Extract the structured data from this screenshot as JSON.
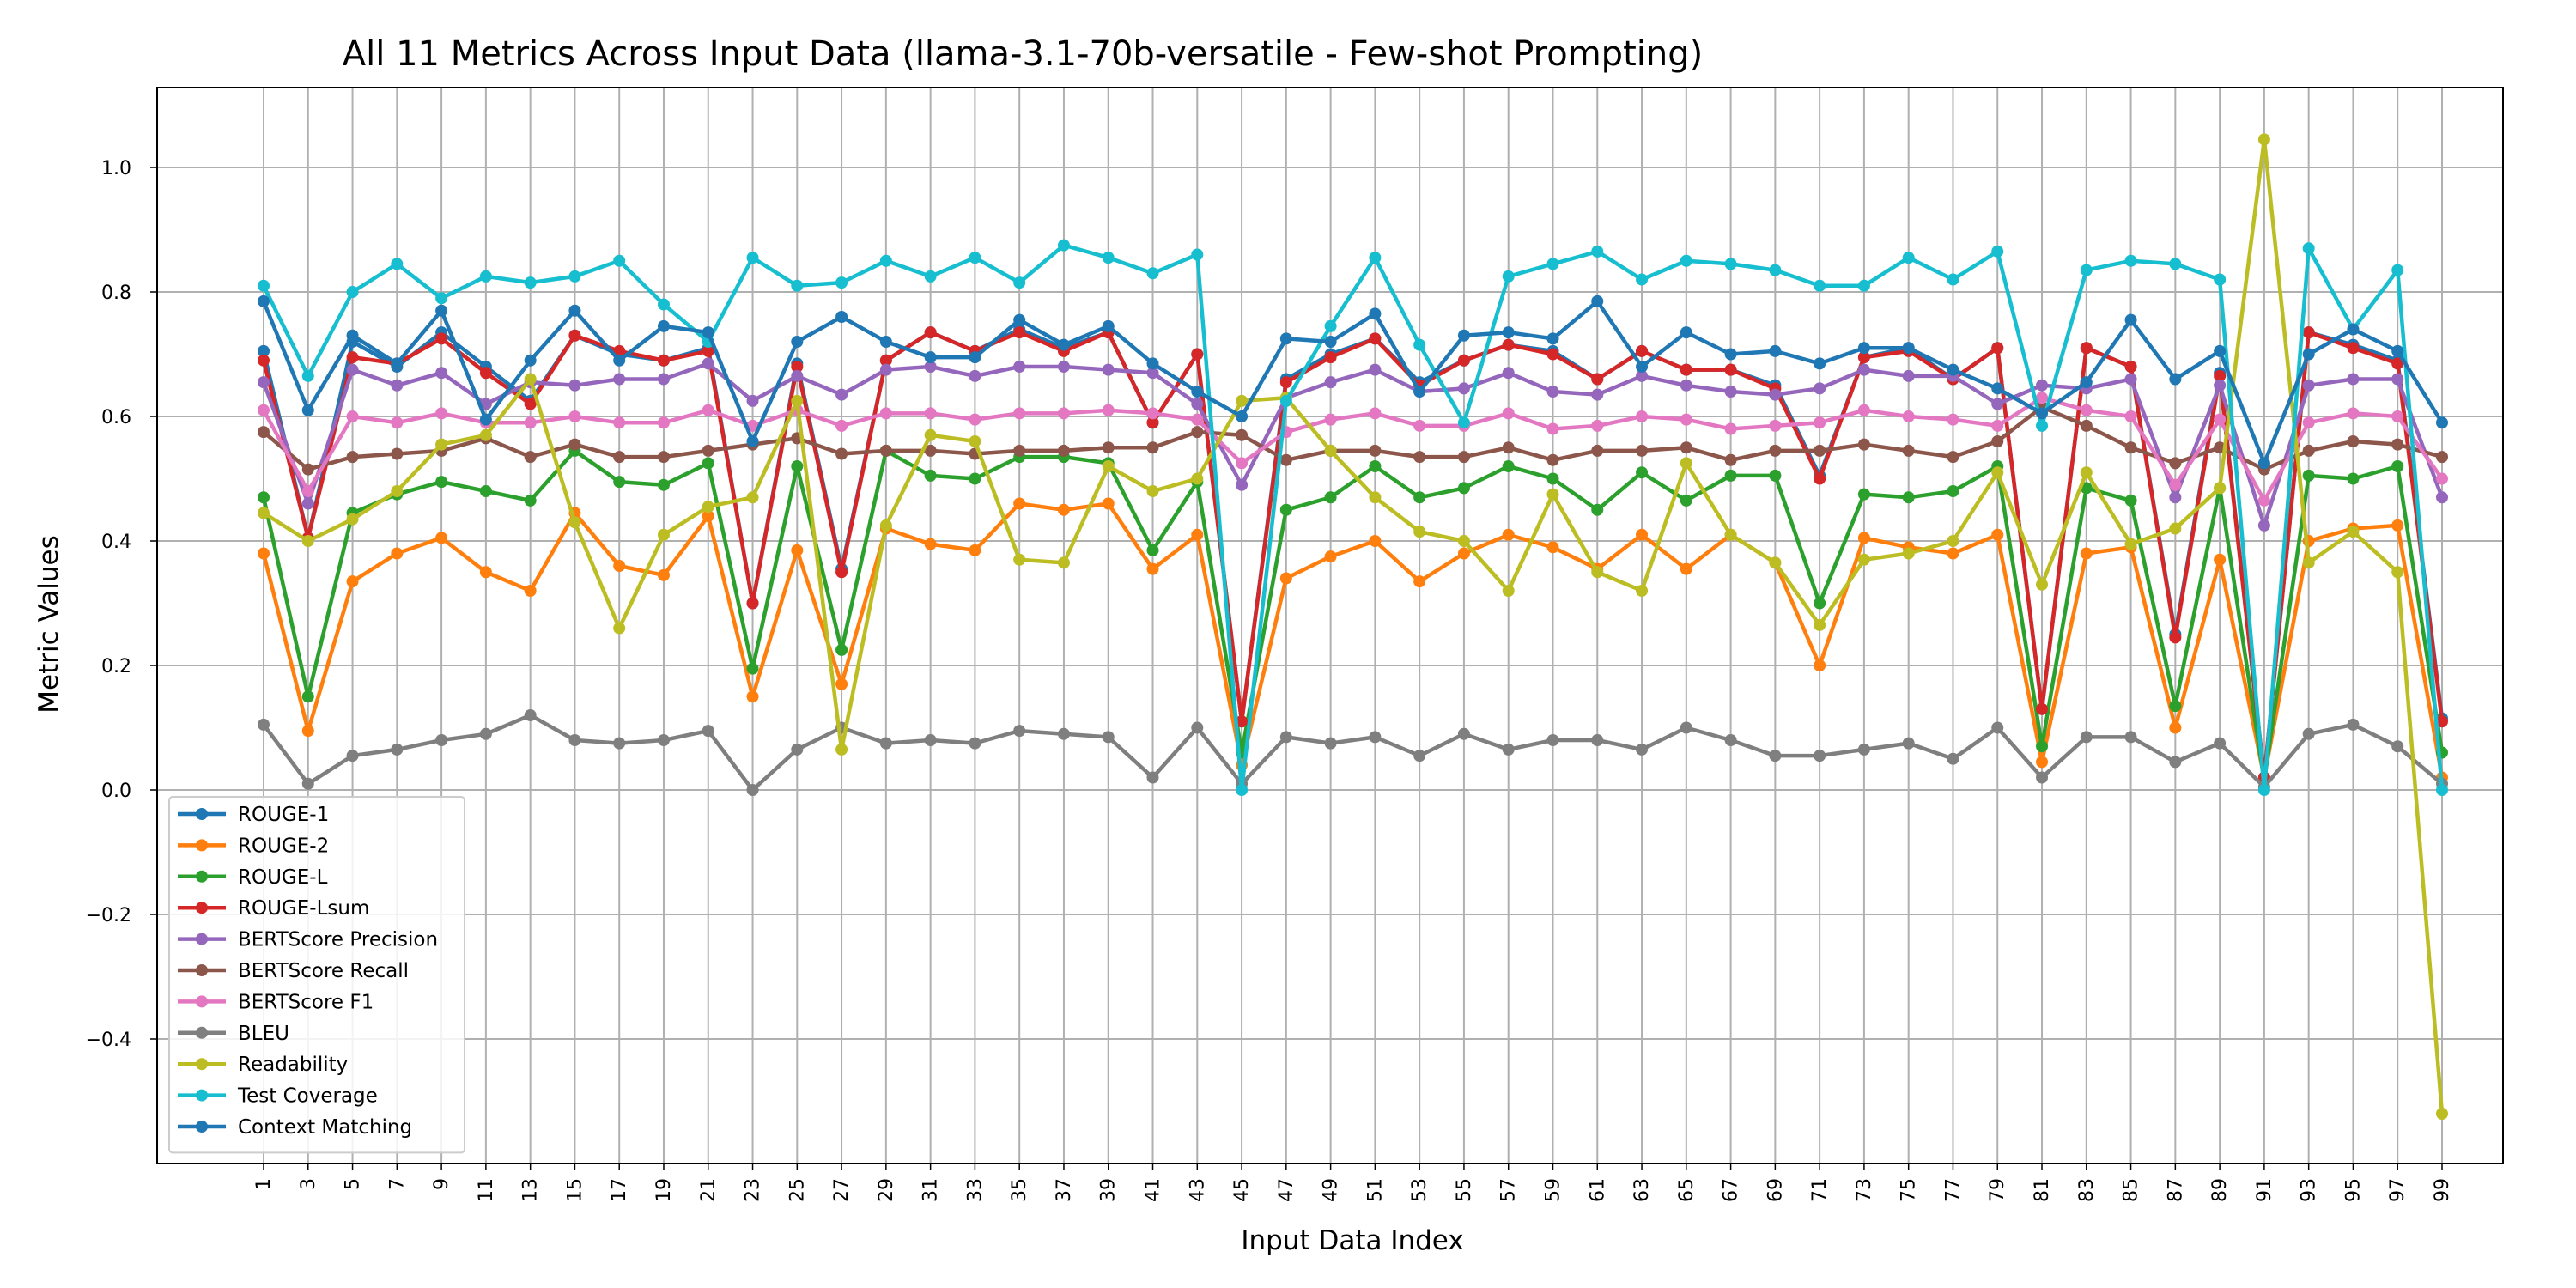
{
  "chart_data": {
    "type": "line",
    "title": "All 11 Metrics Across Input Data (llama-3.1-70b-versatile - Few-shot Prompting)",
    "xlabel": "Input Data Index",
    "ylabel": "Metric Values",
    "ylim": [
      -0.6,
      1.12
    ],
    "yticks": [
      "−0.4",
      "−0.2",
      "0.0",
      "0.2",
      "0.4",
      "0.6",
      "0.8",
      "1.0"
    ],
    "grid": true,
    "legend_position": "lower-left",
    "x": [
      1,
      3,
      5,
      7,
      9,
      11,
      13,
      15,
      17,
      19,
      21,
      23,
      25,
      27,
      29,
      31,
      33,
      35,
      37,
      39,
      41,
      43,
      45,
      47,
      49,
      51,
      53,
      55,
      57,
      59,
      61,
      63,
      65,
      67,
      69,
      71,
      73,
      75,
      77,
      79,
      81,
      83,
      85,
      87,
      89,
      91,
      93,
      95,
      97,
      99
    ],
    "series": [
      {
        "name": "ROUGE-1",
        "color": "#1f77b4",
        "values": [
          0.705,
          0.405,
          0.72,
          0.68,
          0.735,
          0.68,
          0.625,
          0.73,
          0.7,
          0.69,
          0.71,
          0.3,
          0.685,
          0.355,
          0.69,
          0.735,
          0.705,
          0.74,
          0.71,
          0.735,
          0.59,
          0.7,
          0.11,
          0.66,
          0.7,
          0.725,
          0.655,
          0.69,
          0.715,
          0.705,
          0.66,
          0.705,
          0.675,
          0.675,
          0.65,
          0.505,
          0.695,
          0.71,
          0.66,
          0.71,
          0.13,
          0.71,
          0.68,
          0.25,
          0.67,
          0.02,
          0.735,
          0.715,
          0.69,
          0.115
        ]
      },
      {
        "name": "ROUGE-2",
        "color": "#ff7f0e",
        "values": [
          0.38,
          0.095,
          0.335,
          0.38,
          0.405,
          0.35,
          0.32,
          0.445,
          0.36,
          0.345,
          0.44,
          0.15,
          0.385,
          0.17,
          0.42,
          0.395,
          0.385,
          0.46,
          0.45,
          0.46,
          0.355,
          0.41,
          0.04,
          0.34,
          0.375,
          0.4,
          0.335,
          0.38,
          0.41,
          0.39,
          0.355,
          0.41,
          0.355,
          0.41,
          0.365,
          0.2,
          0.405,
          0.39,
          0.38,
          0.41,
          0.045,
          0.38,
          0.39,
          0.1,
          0.37,
          0.02,
          0.4,
          0.42,
          0.425,
          0.02
        ]
      },
      {
        "name": "ROUGE-L",
        "color": "#2ca02c",
        "values": [
          0.47,
          0.15,
          0.445,
          0.475,
          0.495,
          0.48,
          0.465,
          0.545,
          0.495,
          0.49,
          0.525,
          0.195,
          0.52,
          0.225,
          0.545,
          0.505,
          0.5,
          0.535,
          0.535,
          0.525,
          0.385,
          0.495,
          0.06,
          0.45,
          0.47,
          0.52,
          0.47,
          0.485,
          0.52,
          0.5,
          0.45,
          0.51,
          0.465,
          0.505,
          0.505,
          0.3,
          0.475,
          0.47,
          0.48,
          0.52,
          0.07,
          0.485,
          0.465,
          0.135,
          0.485,
          0.015,
          0.505,
          0.5,
          0.52,
          0.06
        ]
      },
      {
        "name": "ROUGE-Lsum",
        "color": "#d62728",
        "values": [
          0.69,
          0.405,
          0.695,
          0.685,
          0.725,
          0.67,
          0.62,
          0.73,
          0.705,
          0.69,
          0.705,
          0.3,
          0.68,
          0.35,
          0.69,
          0.735,
          0.705,
          0.735,
          0.705,
          0.735,
          0.59,
          0.7,
          0.11,
          0.655,
          0.695,
          0.725,
          0.65,
          0.69,
          0.715,
          0.7,
          0.66,
          0.705,
          0.675,
          0.675,
          0.645,
          0.5,
          0.695,
          0.705,
          0.66,
          0.71,
          0.13,
          0.71,
          0.68,
          0.245,
          0.665,
          0.02,
          0.735,
          0.71,
          0.685,
          0.11
        ]
      },
      {
        "name": "BERTScore Precision",
        "color": "#9467bd",
        "values": [
          0.655,
          0.46,
          0.675,
          0.65,
          0.67,
          0.62,
          0.655,
          0.65,
          0.66,
          0.66,
          0.685,
          0.625,
          0.665,
          0.635,
          0.675,
          0.68,
          0.665,
          0.68,
          0.68,
          0.675,
          0.67,
          0.62,
          0.49,
          0.63,
          0.655,
          0.675,
          0.64,
          0.645,
          0.67,
          0.64,
          0.635,
          0.665,
          0.65,
          0.64,
          0.635,
          0.645,
          0.675,
          0.665,
          0.665,
          0.62,
          0.65,
          0.645,
          0.66,
          0.47,
          0.65,
          0.425,
          0.65,
          0.66,
          0.66,
          0.47
        ]
      },
      {
        "name": "BERTScore Recall",
        "color": "#8c564b",
        "values": [
          0.575,
          0.515,
          0.535,
          0.54,
          0.545,
          0.565,
          0.535,
          0.555,
          0.535,
          0.535,
          0.545,
          0.555,
          0.565,
          0.54,
          0.545,
          0.545,
          0.54,
          0.545,
          0.545,
          0.55,
          0.55,
          0.575,
          0.57,
          0.53,
          0.545,
          0.545,
          0.535,
          0.535,
          0.55,
          0.53,
          0.545,
          0.545,
          0.55,
          0.53,
          0.545,
          0.545,
          0.555,
          0.545,
          0.535,
          0.56,
          0.615,
          0.585,
          0.55,
          0.525,
          0.55,
          0.515,
          0.545,
          0.56,
          0.555,
          0.535
        ]
      },
      {
        "name": "BERTScore F1",
        "color": "#e377c2",
        "values": [
          0.61,
          0.48,
          0.6,
          0.59,
          0.605,
          0.59,
          0.59,
          0.6,
          0.59,
          0.59,
          0.61,
          0.585,
          0.61,
          0.585,
          0.605,
          0.605,
          0.595,
          0.605,
          0.605,
          0.61,
          0.605,
          0.595,
          0.525,
          0.575,
          0.595,
          0.605,
          0.585,
          0.585,
          0.605,
          0.58,
          0.585,
          0.6,
          0.595,
          0.58,
          0.585,
          0.59,
          0.61,
          0.6,
          0.595,
          0.585,
          0.63,
          0.61,
          0.6,
          0.49,
          0.595,
          0.465,
          0.59,
          0.605,
          0.6,
          0.5
        ]
      },
      {
        "name": "BLEU",
        "color": "#7f7f7f",
        "values": [
          0.105,
          0.01,
          0.055,
          0.065,
          0.08,
          0.09,
          0.12,
          0.08,
          0.075,
          0.08,
          0.095,
          0.0,
          0.065,
          0.1,
          0.075,
          0.08,
          0.075,
          0.095,
          0.09,
          0.085,
          0.02,
          0.1,
          0.01,
          0.085,
          0.075,
          0.085,
          0.055,
          0.09,
          0.065,
          0.08,
          0.08,
          0.065,
          0.1,
          0.08,
          0.055,
          0.055,
          0.065,
          0.075,
          0.05,
          0.1,
          0.02,
          0.085,
          0.085,
          0.045,
          0.075,
          0.005,
          0.09,
          0.105,
          0.07,
          0.01
        ]
      },
      {
        "name": "Readability",
        "color": "#bcbd22",
        "values": [
          0.445,
          0.4,
          0.435,
          0.48,
          0.555,
          0.57,
          0.66,
          0.43,
          0.26,
          0.41,
          0.455,
          0.47,
          0.625,
          0.065,
          0.425,
          0.57,
          0.56,
          0.37,
          0.365,
          0.52,
          0.48,
          0.5,
          0.625,
          0.63,
          0.545,
          0.47,
          0.415,
          0.4,
          0.32,
          0.475,
          0.35,
          0.32,
          0.525,
          0.41,
          0.365,
          0.265,
          0.37,
          0.38,
          0.4,
          0.51,
          0.33,
          0.51,
          0.395,
          0.42,
          0.485,
          1.045,
          0.365,
          0.415,
          0.35,
          -0.52
        ]
      },
      {
        "name": "Test Coverage",
        "color": "#17becf",
        "values": [
          0.81,
          0.665,
          0.8,
          0.845,
          0.79,
          0.825,
          0.815,
          0.825,
          0.85,
          0.78,
          0.72,
          0.855,
          0.81,
          0.815,
          0.85,
          0.825,
          0.855,
          0.815,
          0.875,
          0.855,
          0.83,
          0.86,
          0.0,
          0.625,
          0.745,
          0.855,
          0.715,
          0.59,
          0.825,
          0.845,
          0.865,
          0.82,
          0.85,
          0.845,
          0.835,
          0.81,
          0.81,
          0.855,
          0.82,
          0.865,
          0.585,
          0.835,
          0.85,
          0.845,
          0.82,
          0.0,
          0.87,
          0.74,
          0.835,
          0.0
        ]
      },
      {
        "name": "Context Matching",
        "color": "#1f77b4",
        "values": [
          0.785,
          0.61,
          0.73,
          0.685,
          0.77,
          0.595,
          0.69,
          0.77,
          0.69,
          0.745,
          0.735,
          0.56,
          0.72,
          0.76,
          0.72,
          0.695,
          0.695,
          0.755,
          0.715,
          0.745,
          0.685,
          0.64,
          0.6,
          0.725,
          0.72,
          0.765,
          0.64,
          0.73,
          0.735,
          0.725,
          0.785,
          0.68,
          0.735,
          0.7,
          0.705,
          0.685,
          0.71,
          0.71,
          0.675,
          0.645,
          0.605,
          0.655,
          0.755,
          0.66,
          0.705,
          0.525,
          0.7,
          0.74,
          0.705,
          0.59
        ]
      }
    ]
  }
}
